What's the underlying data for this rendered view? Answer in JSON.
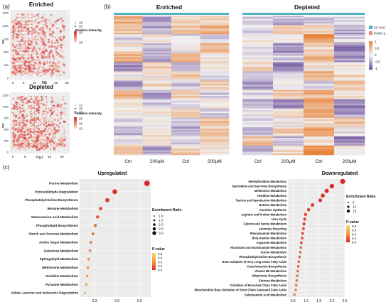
{
  "panel_labels": {
    "a": "(a)",
    "b": "(b)",
    "c": "(c)"
  },
  "scatter_plots": [
    {
      "title": "Enriched",
      "xlabel": "RT",
      "ylabel": "mz",
      "y_ticks": [
        "1250",
        "1000",
        "750",
        "500",
        "250",
        "0"
      ],
      "x_ticks": [
        "0",
        "5",
        "10",
        "15",
        "20",
        "25"
      ],
      "legend_title": "Relative intensity",
      "size_legend": [
        "15",
        "20"
      ],
      "color_legend": [
        "20",
        "15"
      ]
    },
    {
      "title": "Depleted",
      "xlabel": "RT",
      "ylabel": "mz",
      "y_ticks": [
        "1250",
        "1000",
        "750",
        "500",
        "250",
        "0"
      ],
      "x_ticks": [
        "0",
        "5",
        "10",
        "15",
        "20"
      ],
      "legend_title": "Relative intensity",
      "size_legend": [
        "12",
        "16",
        "20"
      ],
      "color_legend": [
        "20",
        "16",
        "12"
      ]
    }
  ],
  "heatmaps": [
    {
      "title": "Enriched",
      "columns": [
        "Ctrl",
        "200μM",
        "Ctrl",
        "200μM"
      ]
    },
    {
      "title": "Depleted",
      "columns": [
        "Ctrl",
        "200μM",
        "Ctrl",
        "200μM"
      ]
    }
  ],
  "heatmap_group_legend": [
    {
      "label": "CF-PAC",
      "color": "#4fb3bf"
    },
    {
      "label": "PANC-1",
      "color": "#e98b8b"
    }
  ],
  "heatmap_color_scale": {
    "ticks": [
      "1",
      "0.5",
      "0",
      "-0.5",
      "-1"
    ],
    "high": "#e8833a",
    "mid": "#f2f2f2",
    "low": "#6c4f9c"
  },
  "chart_data": [
    {
      "type": "scatter",
      "title": "Upregulated",
      "xlabel": "",
      "ylabel": "",
      "x_ticks": [
        "0.3",
        "0.6",
        "0.9"
      ],
      "xlim": [
        0.1,
        1.05
      ],
      "categories": [
        "Purine Metabolism",
        "Pyruvaldehyde Degradation",
        "Phosphatidylcholine Biosynthesis",
        "Betaine Metabolism",
        "Selenoamino Acid Metabolism",
        "Phospholipid Biosynthesis",
        "Starch and Sucrose Metabolism",
        "Amino Sugar Metabolism",
        "Galactose Metabolism",
        "Sphingolipid Metabolism",
        "Methionine Metabolism",
        "Histidine Metabolism",
        "Pyruvate Metabolism",
        "Valine, Leucine and Isoleucine Degradation"
      ],
      "x": [
        1.0,
        0.57,
        0.47,
        0.38,
        0.34,
        0.31,
        0.28,
        0.25,
        0.24,
        0.22,
        0.21,
        0.2,
        0.19,
        0.17
      ],
      "size": [
        3.0,
        2.5,
        2.0,
        1.5,
        1.3,
        1.2,
        1.1,
        1.0,
        1.0,
        0.9,
        0.9,
        0.8,
        0.8,
        0.7
      ],
      "p_value": [
        0.0,
        0.05,
        0.08,
        0.15,
        0.2,
        0.3,
        0.35,
        0.4,
        0.45,
        0.5,
        0.55,
        0.6,
        0.65,
        0.7
      ],
      "size_legend_title": "Enrichment Ratio",
      "size_legend": [
        "1.0",
        "1.5",
        "2.0",
        "2.5",
        "3.0"
      ],
      "color_legend_title": "P-value",
      "color_legend": [
        "0.8",
        "0.6",
        "0.4",
        "0.2",
        "0.0"
      ]
    },
    {
      "type": "scatter",
      "title": "Downregulated",
      "xlabel": "",
      "ylabel": "",
      "x_ticks": [
        "0.5",
        "1.0",
        "1.5",
        "2.0",
        "2.5"
      ],
      "xlim": [
        0.3,
        2.5
      ],
      "categories": [
        "Methylhistidine Metabolism",
        "Spermidine and Spermine Biosynthesis",
        "Methionine Metabolism",
        "Histidine Metabolism",
        "Taurine and Hypotaurine Metabolism",
        "Betaine Metabolism",
        "Carnitine Synthesis",
        "Arginine and Proline Metabolism",
        "Urea Cycle",
        "Glycine and Serine Metabolism",
        "Ammonia Recycling",
        "Phenylacetate Metabolism",
        "Beta-Alanine Metabolism",
        "Aspartate Metabolism",
        "Nicotinate and Nicotinamide Metabolism",
        "Purine Metabolism",
        "Phosphatidylcholine Biosynthesis",
        "Beta Oxidation of Very Long Chain Fatty Acids",
        "Catecholamine Biosynthesis",
        "Vitamin B6 Metabolism",
        "Ubiquinone Biosynthesis",
        "Estrone Metabolism",
        "Oxidation of Branched Chain Fatty Acids",
        "Mitochondrial Beta-Oxidation of Short Chain Saturated Fatty Acids",
        "Selenoamino Acid Metabolism"
      ],
      "x": [
        2.42,
        2.0,
        1.8,
        1.65,
        1.55,
        1.25,
        1.1,
        0.98,
        0.95,
        0.92,
        0.9,
        0.87,
        0.85,
        0.82,
        0.8,
        0.78,
        0.75,
        0.72,
        0.7,
        0.68,
        0.66,
        0.64,
        0.62,
        0.6,
        0.55
      ],
      "size": [
        15,
        13,
        12,
        11,
        10,
        9,
        8,
        7,
        7,
        7,
        6,
        6,
        6,
        6,
        5,
        5,
        5,
        5,
        5,
        5,
        5,
        5,
        5,
        5,
        5
      ],
      "p_value": [
        0.0,
        0.02,
        0.04,
        0.05,
        0.06,
        0.08,
        0.1,
        0.12,
        0.14,
        0.15,
        0.17,
        0.18,
        0.2,
        0.22,
        0.24,
        0.26,
        0.28,
        0.3,
        0.32,
        0.34,
        0.36,
        0.38,
        0.4,
        0.42,
        0.44
      ],
      "size_legend_title": "Enrichment Ratio",
      "size_legend": [
        "5",
        "10",
        "15"
      ],
      "color_legend_title": "P-value",
      "color_legend": [
        "0.8",
        "0.6",
        "0.4",
        "0.2",
        "0.0"
      ]
    }
  ]
}
